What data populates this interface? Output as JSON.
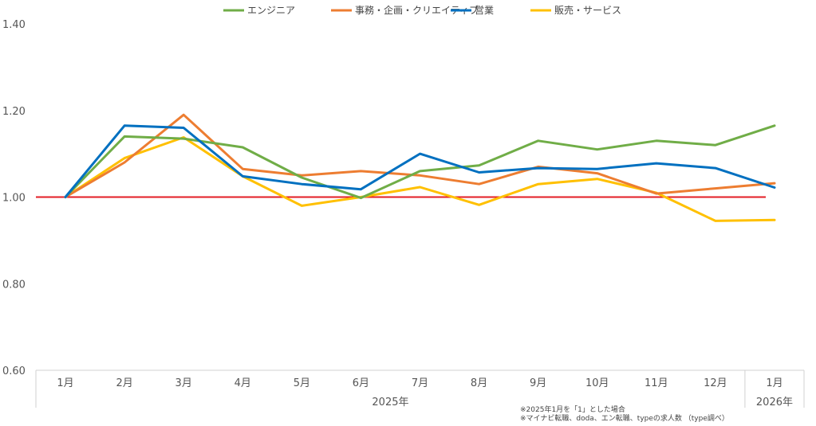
{
  "chart_data": {
    "type": "line",
    "title": "",
    "x": [
      "1月",
      "2月",
      "3月",
      "4月",
      "5月",
      "6月",
      "7月",
      "8月",
      "9月",
      "10月",
      "11月",
      "12月",
      "1月"
    ],
    "year_groups": [
      {
        "label": "2025年",
        "start": 0,
        "end": 11
      },
      {
        "label": "2026年",
        "start": 12,
        "end": 12
      }
    ],
    "ylim": [
      0.6,
      1.4
    ],
    "yticks": [
      "0.60",
      "0.80",
      "1.00",
      "1.20",
      "1.40"
    ],
    "ytick_values": [
      0.6,
      0.8,
      1.0,
      1.2,
      1.4
    ],
    "reference_line": {
      "value": 1.0,
      "color": "#e31e24"
    },
    "legend_position": "top-center",
    "series": [
      {
        "name": "エンジニア",
        "color": "#70ad47",
        "values": [
          1.0,
          1.14,
          1.135,
          1.115,
          1.045,
          0.998,
          1.06,
          1.073,
          1.13,
          1.11,
          1.13,
          1.12,
          1.165
        ]
      },
      {
        "name": "事務・企画・クリエイティブ",
        "color": "#ed7d31",
        "values": [
          1.0,
          1.08,
          1.19,
          1.065,
          1.05,
          1.06,
          1.05,
          1.03,
          1.07,
          1.055,
          1.008,
          1.02,
          1.032
        ]
      },
      {
        "name": "営業",
        "color": "#0070c0",
        "values": [
          1.0,
          1.165,
          1.16,
          1.048,
          1.03,
          1.018,
          1.1,
          1.057,
          1.067,
          1.065,
          1.078,
          1.067,
          1.022
        ]
      },
      {
        "name": "販売・サービス",
        "color": "#ffc000",
        "values": [
          1.0,
          1.09,
          1.138,
          1.048,
          0.98,
          1.0,
          1.023,
          0.982,
          1.03,
          1.042,
          1.01,
          0.945,
          0.947
        ]
      }
    ],
    "notes": [
      "※2025年1月を「1」とした場合",
      "※マイナビ転職、doda、エン転職、typeの求人数 （type調べ）"
    ]
  }
}
